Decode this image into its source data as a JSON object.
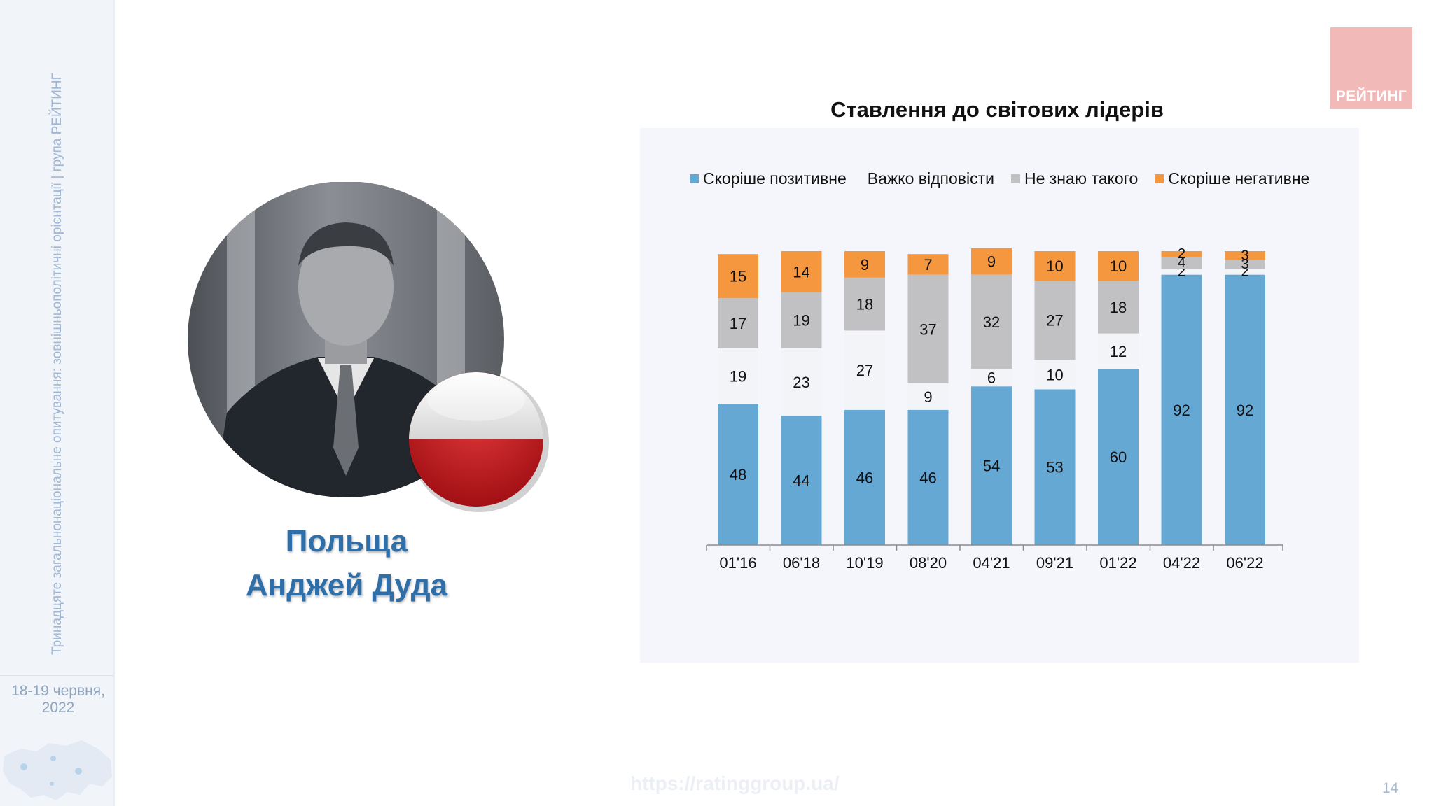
{
  "sidebar": {
    "caption": "Тринадцяте загальнонаціональне опитування: зовнішньополітичні орієнтації | група РЕЙТИНГ",
    "date_line1": "18-19 червня,",
    "date_line2": "2022"
  },
  "logo": {
    "text": "РЕЙТИНГ",
    "color": "#f2b9b9"
  },
  "left_panel": {
    "country": "Польща",
    "leader": "Анджей Дуда",
    "flag_icon": "poland-flag-icon",
    "portrait_icon": "leader-portrait"
  },
  "chart_data": {
    "type": "bar",
    "stacked": true,
    "title": "Ставлення до світових лідерів",
    "categories": [
      "01'16",
      "06'18",
      "10'19",
      "08'20",
      "04'21",
      "09'21",
      "01'22",
      "04'22",
      "06'22"
    ],
    "series": [
      {
        "name": "Скоріше позитивне",
        "color": "#66a8d4",
        "values": [
          48,
          44,
          46,
          46,
          54,
          53,
          60,
          92,
          92
        ]
      },
      {
        "name": "Важко відповісти",
        "color": "#f3f4f7",
        "values": [
          19,
          23,
          27,
          9,
          6,
          10,
          12,
          2,
          2
        ]
      },
      {
        "name": "Не знаю такого",
        "color": "#c1c0c2",
        "values": [
          17,
          19,
          18,
          37,
          32,
          27,
          18,
          4,
          3
        ]
      },
      {
        "name": "Скоріше негативне",
        "color": "#f5973f",
        "values": [
          15,
          14,
          9,
          7,
          9,
          10,
          10,
          2,
          3
        ]
      }
    ],
    "ylim": [
      0,
      100
    ],
    "legend_position": "top",
    "grid": false
  },
  "footer": {
    "url": "https://ratinggroup.ua/",
    "page": "14"
  }
}
